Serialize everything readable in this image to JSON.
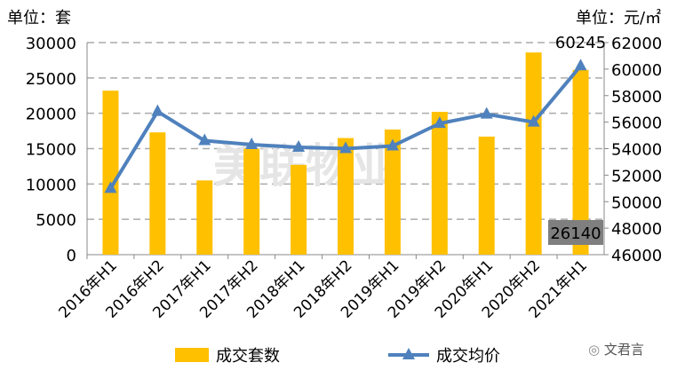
{
  "chart_data": {
    "type": "bar+line",
    "categories": [
      "2016年H1",
      "2016年H2",
      "2017年H1",
      "2017年H2",
      "2018年H1",
      "2018年H2",
      "2019年H1",
      "2019年H2",
      "2020年H1",
      "2020年H2",
      "2021年H1"
    ],
    "series": [
      {
        "name": "成交套数",
        "type": "bar",
        "axis": "left",
        "color": "#FFC000",
        "values": [
          23200,
          17300,
          10500,
          15000,
          12700,
          16500,
          17700,
          20200,
          16700,
          28600,
          26140
        ]
      },
      {
        "name": "成交均价",
        "type": "line",
        "axis": "right",
        "color": "#4F81BD",
        "values": [
          51000,
          56800,
          54600,
          54300,
          54100,
          54000,
          54200,
          55900,
          56600,
          56000,
          60245
        ]
      }
    ],
    "left_unit": "单位：套",
    "right_unit": "单位：元/㎡",
    "ylim_left": [
      0,
      30000
    ],
    "ylim_right": [
      46000,
      62000
    ],
    "left_ticks": [
      0,
      5000,
      10000,
      15000,
      20000,
      25000,
      30000
    ],
    "right_ticks": [
      46000,
      48000,
      50000,
      52000,
      54000,
      56000,
      58000,
      60000,
      62000
    ],
    "data_labels": {
      "line_last": "60245",
      "bar_last": "26140"
    },
    "grid": true,
    "legend": "bottom"
  },
  "watermark": "文君言"
}
